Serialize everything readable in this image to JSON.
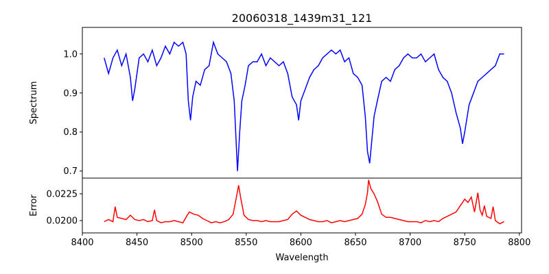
{
  "chart_data": [
    {
      "type": "line",
      "title": "20060318_1439m31_121",
      "xlabel": "",
      "ylabel": "Spectrum",
      "xlim": [
        8400,
        8802
      ],
      "ylim": [
        0.682,
        1.068
      ],
      "yticks": [
        0.7,
        0.8,
        0.9,
        1.0
      ],
      "ytick_labels": [
        "0.7",
        "0.8",
        "0.9",
        "1.0"
      ],
      "color": "#0000ff",
      "grid": false,
      "series": [
        {
          "name": "Spectrum",
          "x": [
            8420,
            8424,
            8428,
            8432,
            8436,
            8440,
            8444,
            8446,
            8448,
            8452,
            8456,
            8460,
            8464,
            8468,
            8472,
            8476,
            8480,
            8484,
            8488,
            8492,
            8495,
            8497,
            8499,
            8501,
            8504,
            8508,
            8512,
            8516,
            8520,
            8524,
            8528,
            8532,
            8536,
            8539,
            8541,
            8542,
            8544,
            8546,
            8549,
            8552,
            8556,
            8560,
            8564,
            8568,
            8572,
            8576,
            8580,
            8584,
            8588,
            8592,
            8596,
            8598,
            8600,
            8604,
            8608,
            8612,
            8616,
            8620,
            8624,
            8628,
            8632,
            8636,
            8640,
            8644,
            8648,
            8652,
            8656,
            8659,
            8661,
            8663,
            8665,
            8667,
            8670,
            8674,
            8678,
            8682,
            8686,
            8690,
            8694,
            8698,
            8702,
            8706,
            8710,
            8714,
            8718,
            8722,
            8726,
            8730,
            8734,
            8738,
            8742,
            8746,
            8748,
            8750,
            8754,
            8758,
            8762,
            8766,
            8770,
            8774,
            8778,
            8782,
            8786
          ],
          "y": [
            0.99,
            0.95,
            0.99,
            1.01,
            0.97,
            1.0,
            0.94,
            0.88,
            0.91,
            0.99,
            1.0,
            0.98,
            1.01,
            0.97,
            0.99,
            1.02,
            1.0,
            1.03,
            1.02,
            1.03,
            1.0,
            0.88,
            0.83,
            0.89,
            0.93,
            0.92,
            0.96,
            0.97,
            1.03,
            1.0,
            0.99,
            0.98,
            0.95,
            0.88,
            0.76,
            0.7,
            0.8,
            0.88,
            0.92,
            0.97,
            0.98,
            0.98,
            1.0,
            0.97,
            0.99,
            0.98,
            0.97,
            0.98,
            0.95,
            0.89,
            0.87,
            0.83,
            0.88,
            0.91,
            0.94,
            0.96,
            0.97,
            0.99,
            1.0,
            1.01,
            1.0,
            1.01,
            0.98,
            0.99,
            0.95,
            0.94,
            0.92,
            0.84,
            0.75,
            0.72,
            0.78,
            0.84,
            0.88,
            0.93,
            0.94,
            0.93,
            0.96,
            0.97,
            0.99,
            1.0,
            0.99,
            0.99,
            1.0,
            0.98,
            0.99,
            1.0,
            0.96,
            0.94,
            0.93,
            0.9,
            0.85,
            0.81,
            0.77,
            0.8,
            0.87,
            0.9,
            0.93,
            0.94,
            0.95,
            0.96,
            0.97,
            1.0,
            1.0
          ]
        }
      ]
    },
    {
      "type": "line",
      "title": "",
      "xlabel": "Wavelength",
      "ylabel": "Error",
      "xlim": [
        8400,
        8802
      ],
      "ylim": [
        0.01885,
        0.02397
      ],
      "xticks": [
        8400,
        8450,
        8500,
        8550,
        8600,
        8650,
        8700,
        8750,
        8800
      ],
      "xtick_labels": [
        "8400",
        "8450",
        "8500",
        "8550",
        "8600",
        "8650",
        "8700",
        "8750",
        "8800"
      ],
      "yticks": [
        0.02,
        0.0225
      ],
      "ytick_labels": [
        "0.0200",
        "0.0225"
      ],
      "color": "#ff0000",
      "grid": false,
      "series": [
        {
          "name": "Error",
          "x": [
            8420,
            8424,
            8428,
            8430,
            8432,
            8436,
            8440,
            8444,
            8448,
            8452,
            8456,
            8460,
            8464,
            8466,
            8468,
            8472,
            8476,
            8480,
            8484,
            8488,
            8492,
            8496,
            8498,
            8502,
            8506,
            8510,
            8514,
            8518,
            8522,
            8526,
            8530,
            8534,
            8538,
            8541,
            8543,
            8545,
            8548,
            8552,
            8556,
            8560,
            8564,
            8568,
            8572,
            8576,
            8580,
            8584,
            8588,
            8592,
            8596,
            8600,
            8604,
            8608,
            8612,
            8616,
            8620,
            8624,
            8628,
            8632,
            8636,
            8640,
            8644,
            8648,
            8652,
            8656,
            8659,
            8661,
            8662,
            8664,
            8667,
            8670,
            8674,
            8678,
            8682,
            8686,
            8690,
            8694,
            8698,
            8702,
            8706,
            8710,
            8714,
            8718,
            8722,
            8726,
            8730,
            8734,
            8738,
            8742,
            8746,
            8750,
            8753,
            8756,
            8759,
            8762,
            8764,
            8766,
            8768,
            8770,
            8774,
            8776,
            8778,
            8782,
            8786
          ],
          "y": [
            0.0199,
            0.0201,
            0.0199,
            0.0213,
            0.0203,
            0.0202,
            0.0201,
            0.0205,
            0.0201,
            0.02,
            0.0201,
            0.0199,
            0.02,
            0.021,
            0.02,
            0.0198,
            0.0199,
            0.0199,
            0.02,
            0.0199,
            0.0198,
            0.0205,
            0.0208,
            0.0206,
            0.0205,
            0.0202,
            0.02,
            0.0198,
            0.0199,
            0.0198,
            0.0199,
            0.0201,
            0.0206,
            0.0222,
            0.0233,
            0.0221,
            0.0205,
            0.0201,
            0.02,
            0.02,
            0.0199,
            0.02,
            0.0199,
            0.0199,
            0.0199,
            0.02,
            0.0201,
            0.0206,
            0.0209,
            0.0205,
            0.0203,
            0.0201,
            0.02,
            0.0199,
            0.0199,
            0.02,
            0.0198,
            0.0199,
            0.02,
            0.0199,
            0.02,
            0.0201,
            0.0202,
            0.0206,
            0.0215,
            0.0226,
            0.0238,
            0.023,
            0.0225,
            0.0218,
            0.0206,
            0.0203,
            0.0203,
            0.0202,
            0.0201,
            0.02,
            0.0199,
            0.0199,
            0.0199,
            0.0198,
            0.02,
            0.0199,
            0.02,
            0.0199,
            0.0202,
            0.0204,
            0.0206,
            0.0208,
            0.0214,
            0.022,
            0.0217,
            0.0222,
            0.0208,
            0.0226,
            0.021,
            0.0205,
            0.0214,
            0.0204,
            0.0202,
            0.0213,
            0.02,
            0.0197,
            0.0199
          ]
        }
      ]
    }
  ]
}
